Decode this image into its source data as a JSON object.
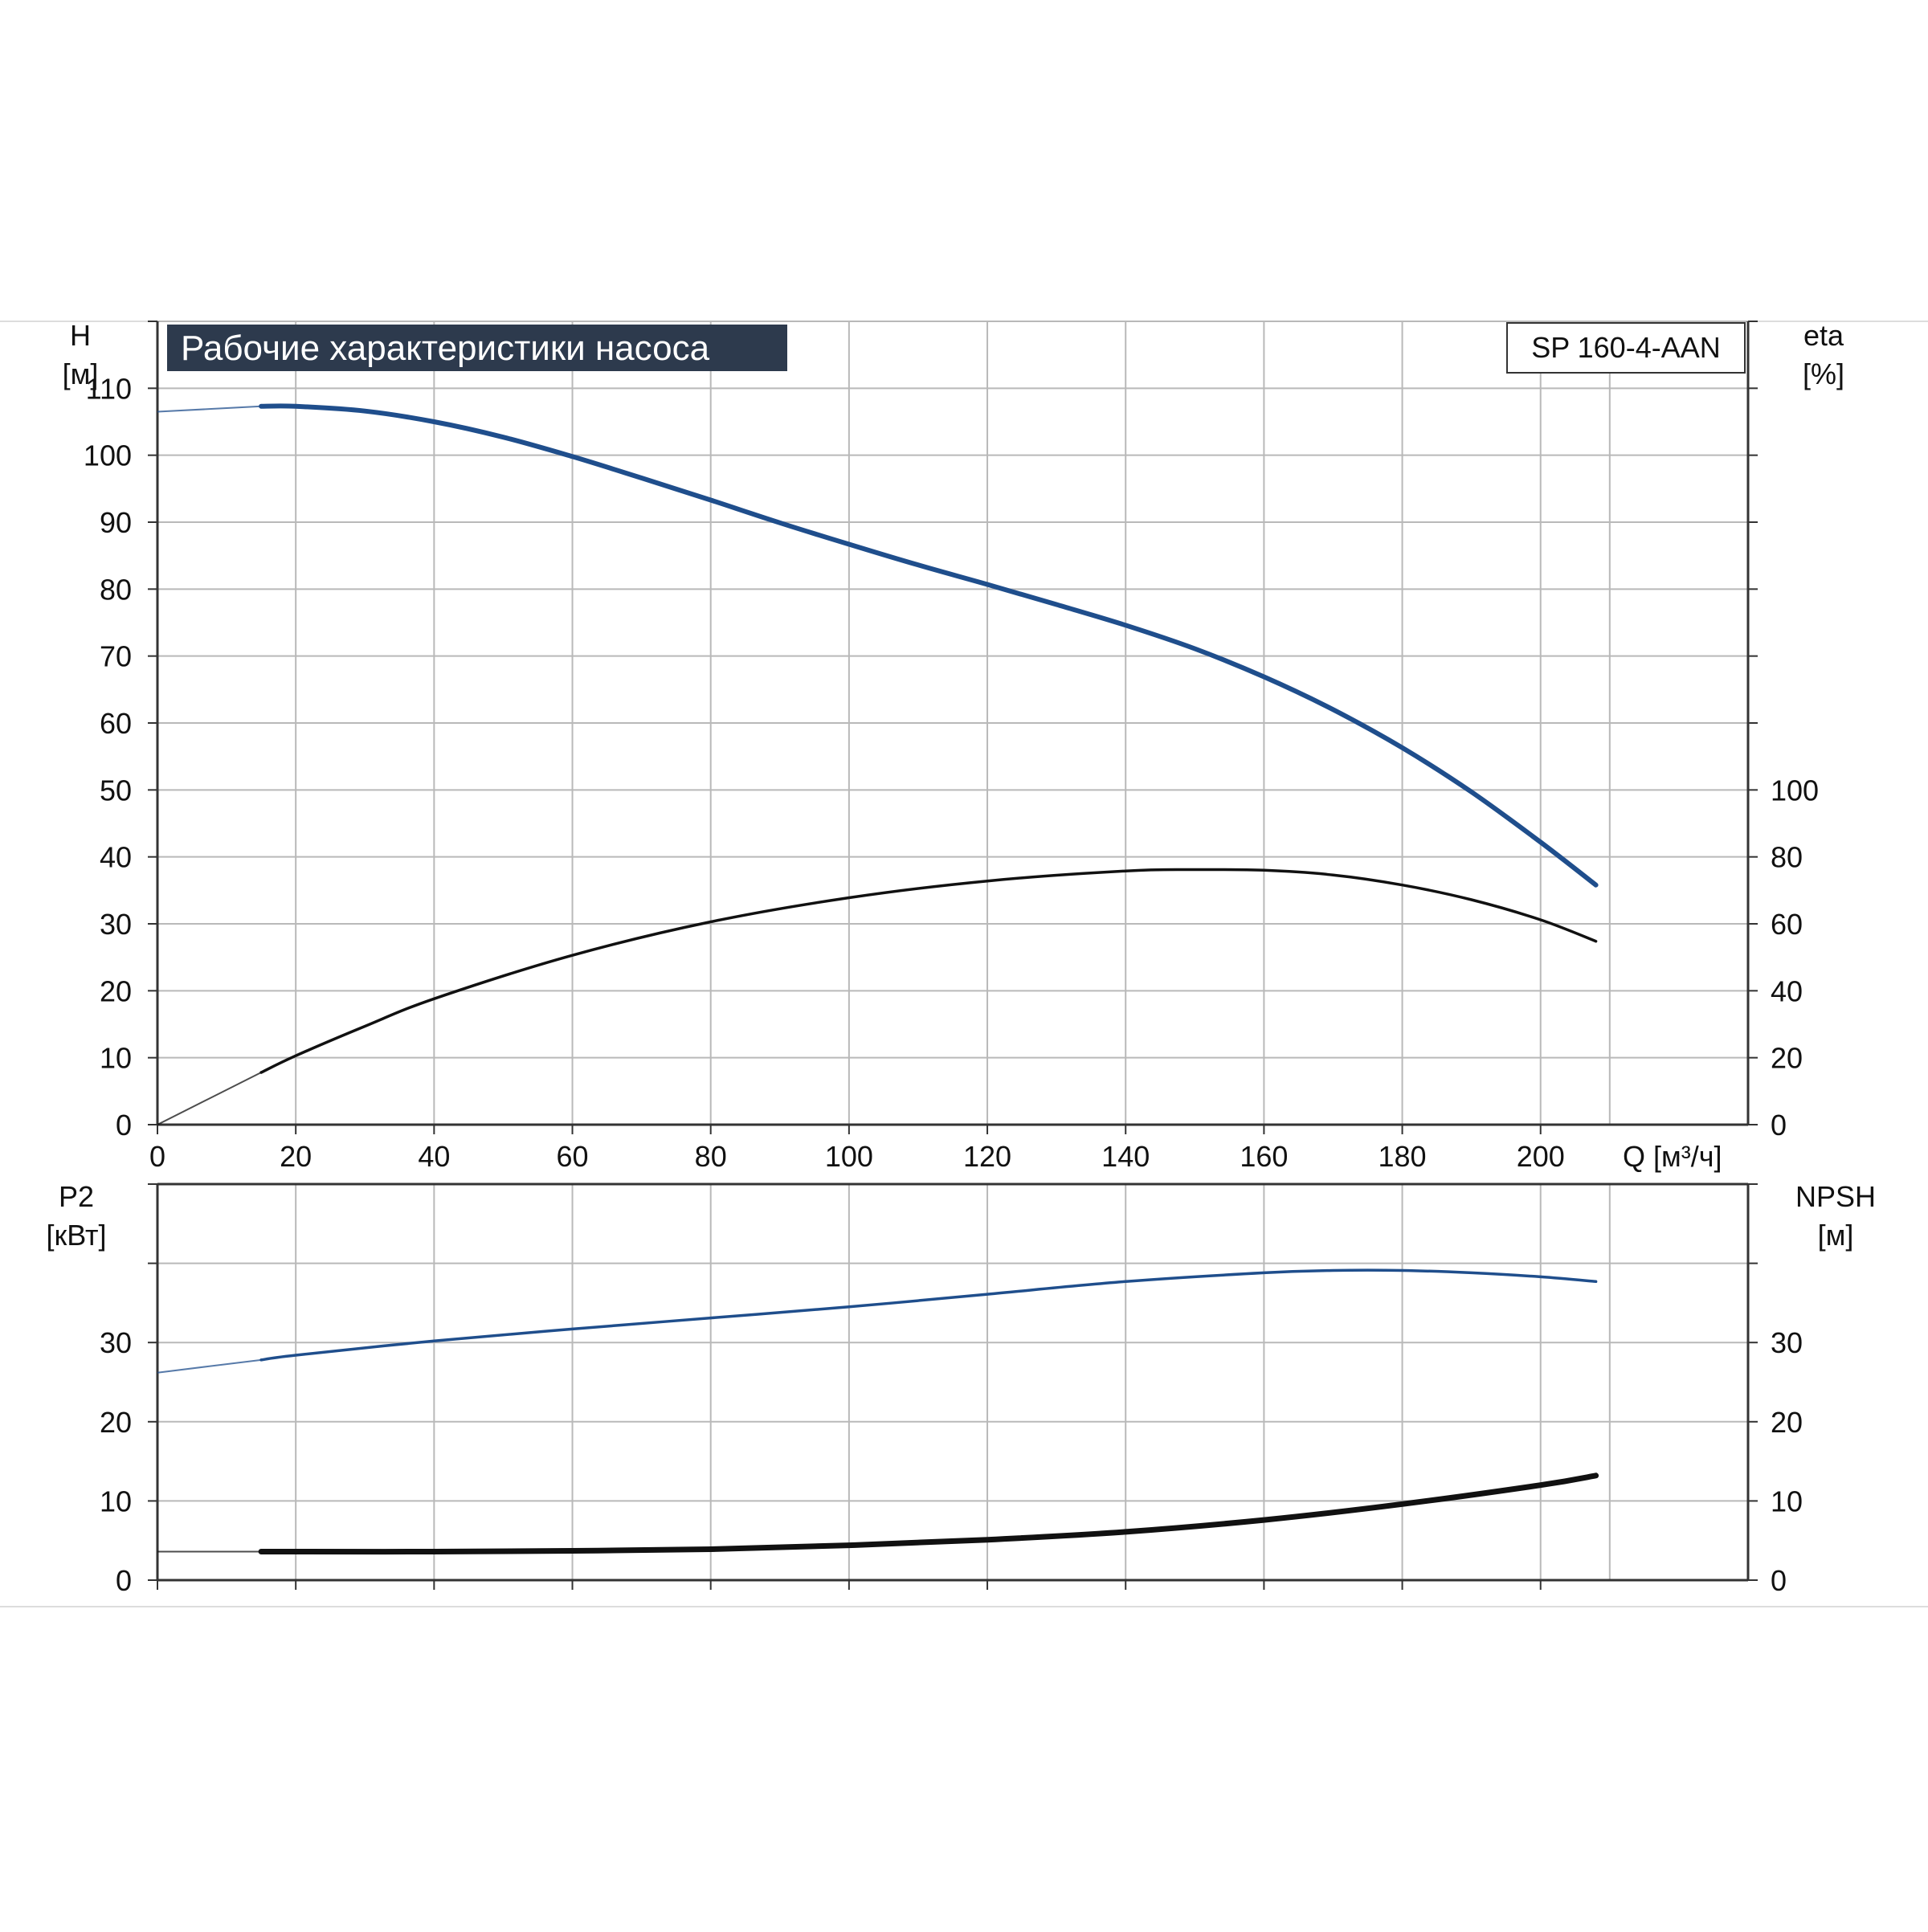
{
  "title": "Рабочие характеристики насоса",
  "model": "SP 160-4-AAN",
  "colors": {
    "blue_curve": "#1f4e8c",
    "black_curve": "#111111",
    "grid": "#b9b9b9",
    "axis": "#333333",
    "title_bg": "#2d3a4d",
    "title_fg": "#ffffff",
    "frame_line": "#dddddd"
  },
  "chart_data": [
    {
      "type": "line",
      "title": "Рабочие характеристики насоса",
      "xlabel": "Q [м³/ч]",
      "x_ticks": [
        0,
        20,
        40,
        60,
        80,
        100,
        120,
        140,
        160,
        180,
        200
      ],
      "xlim": [
        0,
        230
      ],
      "grid": true,
      "left_axis": {
        "label": "H",
        "unit": "[м]",
        "ticks": [
          0,
          10,
          20,
          30,
          40,
          50,
          60,
          70,
          80,
          90,
          100,
          110
        ],
        "ylim": [
          0,
          120
        ]
      },
      "right_axis": {
        "label": "eta",
        "unit": "[%]",
        "ticks": [
          0,
          20,
          40,
          60,
          80,
          100
        ],
        "ylim": [
          0,
          240
        ]
      },
      "series": [
        {
          "axis": "left",
          "color": "blue",
          "x": [
            0,
            15,
            20,
            30,
            40,
            50,
            60,
            70,
            80,
            90,
            100,
            110,
            120,
            130,
            140,
            150,
            160,
            170,
            180,
            190,
            200,
            208
          ],
          "y": [
            106.5,
            107.3,
            107.3,
            106.6,
            105.0,
            102.7,
            99.8,
            96.6,
            93.3,
            89.9,
            86.7,
            83.6,
            80.7,
            77.7,
            74.6,
            71.1,
            66.9,
            62.0,
            56.3,
            49.7,
            42.2,
            35.8
          ]
        },
        {
          "axis": "right",
          "color": "black",
          "x": [
            0,
            15,
            20,
            30,
            40,
            60,
            80,
            100,
            120,
            140,
            150,
            160,
            170,
            180,
            190,
            200,
            208
          ],
          "y": [
            0,
            15.6,
            20.6,
            29.4,
            37.6,
            50.6,
            60.6,
            67.8,
            72.8,
            75.8,
            76.2,
            76.0,
            74.6,
            71.6,
            67.2,
            61.2,
            54.8
          ]
        }
      ]
    },
    {
      "type": "line",
      "xlim": [
        0,
        230
      ],
      "grid": true,
      "left_axis": {
        "label": "P2",
        "unit": "[кВт]",
        "ticks": [
          0,
          10,
          20,
          30
        ],
        "ylim": [
          0,
          50
        ]
      },
      "right_axis": {
        "label": "NPSH",
        "unit": "[м]",
        "ticks": [
          0,
          10,
          20,
          30
        ],
        "ylim": [
          0,
          50
        ]
      },
      "series": [
        {
          "axis": "left",
          "color": "blue",
          "x": [
            0,
            15,
            20,
            40,
            60,
            80,
            100,
            120,
            140,
            160,
            170,
            180,
            190,
            200,
            208
          ],
          "y": [
            26.2,
            27.8,
            28.4,
            30.2,
            31.7,
            33.1,
            34.5,
            36.1,
            37.7,
            38.8,
            39.1,
            39.1,
            38.8,
            38.3,
            37.7
          ]
        },
        {
          "axis": "right",
          "color": "black",
          "x": [
            0,
            15,
            20,
            40,
            60,
            80,
            100,
            120,
            140,
            160,
            180,
            200,
            208
          ],
          "y": [
            3.6,
            3.6,
            3.6,
            3.6,
            3.7,
            3.9,
            4.4,
            5.1,
            6.1,
            7.6,
            9.6,
            12.0,
            13.2
          ]
        }
      ]
    }
  ]
}
